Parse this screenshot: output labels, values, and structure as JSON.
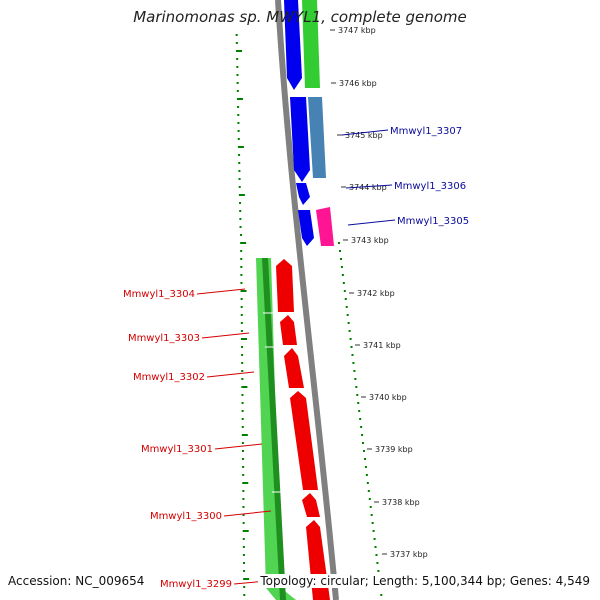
{
  "title": "Marinomonas sp. MWYL1, complete genome",
  "footer": {
    "accession": "Accession: NC_009654",
    "summary": "Topology: circular; Length: 5,100,344 bp; Genes: 4,549"
  },
  "ticks": [
    {
      "kbp": 3747,
      "label": "3747 kbp"
    },
    {
      "kbp": 3746,
      "label": "3746 kbp"
    },
    {
      "kbp": 3745,
      "label": "3745 kbp"
    },
    {
      "kbp": 3744,
      "label": "3744 kbp"
    },
    {
      "kbp": 3743,
      "label": "3743 kbp"
    },
    {
      "kbp": 3742,
      "label": "3742 kbp"
    },
    {
      "kbp": 3741,
      "label": "3741 kbp"
    },
    {
      "kbp": 3740,
      "label": "3740 kbp"
    },
    {
      "kbp": 3739,
      "label": "3739 kbp"
    },
    {
      "kbp": 3738,
      "label": "3738 kbp"
    },
    {
      "kbp": 3737,
      "label": "3737 kbp"
    }
  ],
  "gene_labels": [
    {
      "name": "Mmwyl1_3307",
      "color": "#0b0b9c",
      "side": "right"
    },
    {
      "name": "Mmwyl1_3306",
      "color": "#0b0b9c",
      "side": "right"
    },
    {
      "name": "Mmwyl1_3305",
      "color": "#0b0b9c",
      "side": "right"
    },
    {
      "name": "Mmwyl1_3304",
      "color": "#d40000",
      "side": "left"
    },
    {
      "name": "Mmwyl1_3303",
      "color": "#d40000",
      "side": "left"
    },
    {
      "name": "Mmwyl1_3302",
      "color": "#d40000",
      "side": "left"
    },
    {
      "name": "Mmwyl1_3301",
      "color": "#d40000",
      "side": "left"
    },
    {
      "name": "Mmwyl1_3300",
      "color": "#d40000",
      "side": "left"
    },
    {
      "name": "Mmwyl1_3299",
      "color": "#d40000",
      "side": "left"
    }
  ],
  "colors": {
    "forward_cds": "#0000ee",
    "reverse_cds": "#ee0000",
    "orf_green": "#33cc33",
    "blast_steelblue": "#4682b4",
    "blast_magenta": "#ff1493",
    "backbone": "#808080",
    "gc_dots": "#008000"
  }
}
